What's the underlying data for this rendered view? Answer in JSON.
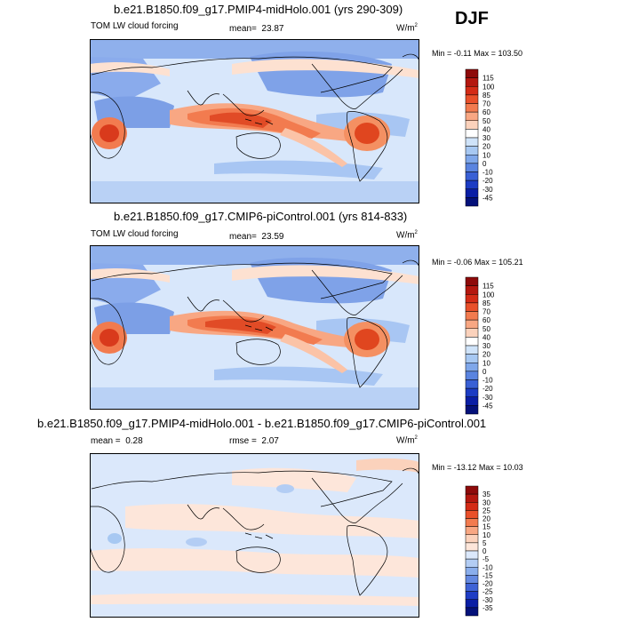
{
  "season": "DJF",
  "chart_data": [
    {
      "type": "heatmap",
      "title": "b.e21.B1850.f09_g17.PMIP4-midHolo.001 (yrs 290-309)",
      "variable": "TOM LW cloud forcing",
      "mean_label": "mean=",
      "mean_value": "23.87",
      "units": "W/m",
      "units_exp": "2",
      "min_label": "Min =",
      "min_value": "-0.11",
      "max_label": "Max =",
      "max_value": "103.50",
      "levels": [
        "115",
        "100",
        "85",
        "70",
        "60",
        "50",
        "40",
        "30",
        "20",
        "10",
        "0",
        "-10",
        "-20",
        "-30",
        "-45"
      ],
      "colors": [
        "#8e0a0a",
        "#b4170f",
        "#d42b16",
        "#e9502a",
        "#f27b4f",
        "#f8a783",
        "#fbd2bc",
        "#ffffff",
        "#cfe3f9",
        "#a7c8f2",
        "#7fa7ea",
        "#5a84e0",
        "#3960d5",
        "#1c3cc4",
        "#0a1ea5",
        "#04117a"
      ]
    },
    {
      "type": "heatmap",
      "title": "b.e21.B1850.f09_g17.CMIP6-piControl.001 (yrs 814-833)",
      "variable": "TOM LW cloud forcing",
      "mean_label": "mean=",
      "mean_value": "23.59",
      "units": "W/m",
      "units_exp": "2",
      "min_label": "Min =",
      "min_value": "-0.06",
      "max_label": "Max =",
      "max_value": "105.21",
      "levels": [
        "115",
        "100",
        "85",
        "70",
        "60",
        "50",
        "40",
        "30",
        "20",
        "10",
        "0",
        "-10",
        "-20",
        "-30",
        "-45"
      ],
      "colors": [
        "#8e0a0a",
        "#b4170f",
        "#d42b16",
        "#e9502a",
        "#f27b4f",
        "#f8a783",
        "#fbd2bc",
        "#ffffff",
        "#cfe3f9",
        "#a7c8f2",
        "#7fa7ea",
        "#5a84e0",
        "#3960d5",
        "#1c3cc4",
        "#0a1ea5",
        "#04117a"
      ]
    },
    {
      "type": "heatmap",
      "title": "b.e21.B1850.f09_g17.PMIP4-midHolo.001 - b.e21.B1850.f09_g17.CMIP6-piControl.001",
      "variable": "",
      "mean_label": "mean =",
      "mean_value": "0.28",
      "rmse_label": "rmse =",
      "rmse_value": "2.07",
      "units": "W/m",
      "units_exp": "2",
      "min_label": "Min =",
      "min_value": "-13.12",
      "max_label": "Max =",
      "max_value": "10.03",
      "levels": [
        "35",
        "30",
        "25",
        "20",
        "15",
        "10",
        "5",
        "0",
        "-5",
        "-10",
        "-15",
        "-20",
        "-25",
        "-30",
        "-35"
      ],
      "colors": [
        "#8e0a0a",
        "#b4170f",
        "#d42b16",
        "#e9502a",
        "#f27b4f",
        "#f8a783",
        "#fbd2bc",
        "#fde6da",
        "#dbe8fb",
        "#b3cdf4",
        "#8aaeec",
        "#6489e1",
        "#3f63d6",
        "#1f3dc5",
        "#0a1ea5",
        "#04117a"
      ]
    }
  ]
}
